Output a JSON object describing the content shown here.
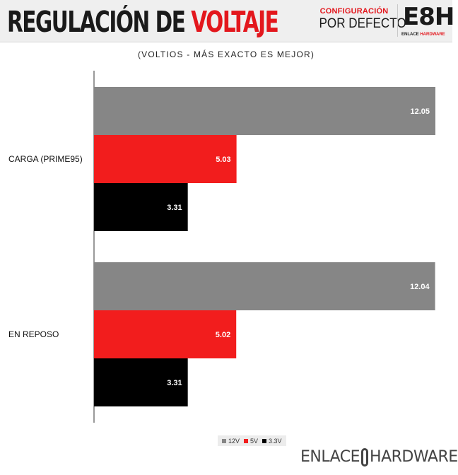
{
  "header": {
    "title_part1": "REGULACIÓN DE",
    "title_part2": "VOLTAJE",
    "config_line1": "CONFIGURACIÓN",
    "config_line2": "POR DEFECTO",
    "logo_text": "E8H",
    "logo_sub_a": "ENLACE",
    "logo_sub_b": "HARDWARE"
  },
  "footer": {
    "brand_left": "ENLACE",
    "brand_right": "HARDWARE"
  },
  "colors": {
    "12V": "#868686",
    "5V": "#f21d1d",
    "3.3V": "#000000",
    "accent": "#e3171d"
  },
  "chart_data": {
    "type": "bar",
    "orientation": "horizontal",
    "title": "(VOLTIOS - MÁS EXACTO ES MEJOR)",
    "categories": [
      "CARGA (PRIME95)",
      "EN REPOSO"
    ],
    "series": [
      {
        "name": "12V",
        "values": [
          12.05,
          12.04
        ]
      },
      {
        "name": "5V",
        "values": [
          5.03,
          5.02
        ]
      },
      {
        "name": "3.3V",
        "values": [
          3.31,
          3.31
        ]
      }
    ],
    "xlim": [
      0,
      12.05
    ],
    "grid": false,
    "legend_position": "bottom"
  }
}
